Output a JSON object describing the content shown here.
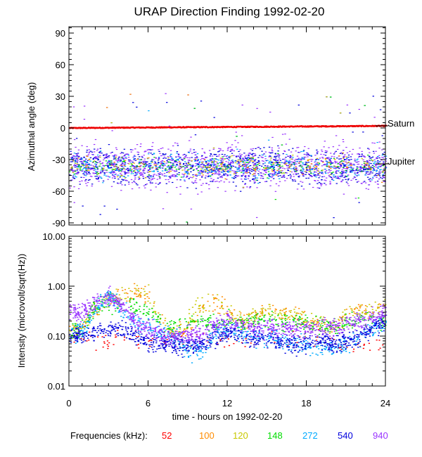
{
  "title": "URAP Direction Finding  1992-02-20",
  "chart_data": [
    {
      "type": "scatter",
      "ylabel": "Azimuthal angle (deg)",
      "xlim": [
        0,
        24
      ],
      "ylim": [
        -92,
        96
      ],
      "yticks": [
        "-90",
        "-60",
        "-30",
        "0",
        "30",
        "60",
        "90"
      ],
      "ytick_values": [
        -90,
        -60,
        -30,
        0,
        30,
        60,
        90
      ],
      "annotations": [
        {
          "text": "Saturn",
          "y": 2
        },
        {
          "text": "Jupiter",
          "y": -34
        }
      ],
      "series_summary": [
        {
          "frequency": "52",
          "values": "Saturn track",
          "y_start": 0,
          "y_end": 2
        },
        {
          "frequency": "540",
          "mean": -36,
          "spread": 9
        },
        {
          "frequency": "940",
          "mean": -36,
          "spread": 11
        },
        {
          "frequency": "272",
          "mean": -35,
          "spread": 7
        },
        {
          "frequency": "148",
          "mean": -35,
          "spread": 5
        },
        {
          "frequency": "120",
          "mean": -35,
          "spread": 5
        },
        {
          "frequency": "100",
          "mean": -36,
          "spread": 6
        }
      ]
    },
    {
      "type": "scatter",
      "ylabel": "Intensity (microvolt/sqrt(Hz))",
      "yscale": "log",
      "xlabel": "time - hours on 1992-02-20",
      "xlim": [
        0,
        24
      ],
      "ylim": [
        0.01,
        10
      ],
      "yticks": [
        "0.01",
        "0.10",
        "1.00",
        "10.00"
      ],
      "ytick_values": [
        0.01,
        0.1,
        1,
        10
      ],
      "xticks": [
        "0",
        "6",
        "12",
        "18",
        "24"
      ],
      "xtick_values": [
        0,
        6,
        12,
        18,
        24
      ],
      "series": [
        {
          "name": "52",
          "color": "#ff0000",
          "x": [
            0,
            1,
            2,
            3,
            4,
            5,
            6,
            7,
            8,
            9,
            10,
            11,
            12,
            13,
            14,
            15,
            16,
            17,
            18,
            19,
            20,
            21,
            22,
            23,
            24
          ],
          "values": [
            0.1,
            0.1,
            0.07,
            0.07,
            0.09,
            0.09,
            0.08,
            0.09,
            0.09,
            0.09,
            0.09,
            0.09,
            0.09,
            0.09,
            0.09,
            0.09,
            0.09,
            0.09,
            0.09,
            0.09,
            0.08,
            0.07,
            0.06,
            0.06,
            0.07
          ]
        },
        {
          "name": "100",
          "color": "#ff8c00",
          "x": [
            0,
            1,
            2,
            3,
            4,
            5,
            6,
            7,
            8,
            9,
            10,
            11,
            12,
            13,
            14,
            15,
            16,
            17,
            18,
            19,
            20,
            21,
            22,
            23,
            24
          ],
          "values": [
            0.13,
            0.14,
            0.35,
            0.55,
            0.6,
            0.75,
            0.7,
            0.2,
            0.12,
            0.15,
            0.35,
            0.55,
            0.3,
            0.2,
            0.25,
            0.35,
            0.3,
            0.3,
            0.2,
            0.18,
            0.15,
            0.25,
            0.35,
            0.3,
            0.4
          ]
        },
        {
          "name": "120",
          "color": "#c8c800",
          "x": [
            0,
            1,
            2,
            3,
            4,
            5,
            6,
            7,
            8,
            9,
            10,
            11,
            12,
            13,
            14,
            15,
            16,
            17,
            18,
            19,
            20,
            21,
            22,
            23,
            24
          ],
          "values": [
            0.15,
            0.15,
            0.4,
            0.7,
            0.6,
            0.8,
            0.65,
            0.2,
            0.12,
            0.2,
            0.4,
            0.6,
            0.3,
            0.2,
            0.25,
            0.35,
            0.3,
            0.3,
            0.2,
            0.2,
            0.15,
            0.3,
            0.3,
            0.35,
            0.4
          ]
        },
        {
          "name": "148",
          "color": "#00dd00",
          "x": [
            0,
            1,
            2,
            3,
            4,
            5,
            6,
            7,
            8,
            9,
            10,
            11,
            12,
            13,
            14,
            15,
            16,
            17,
            18,
            19,
            20,
            21,
            22,
            23,
            24
          ],
          "values": [
            0.15,
            0.15,
            0.4,
            0.5,
            0.4,
            0.4,
            0.3,
            0.2,
            0.15,
            0.2,
            0.2,
            0.2,
            0.2,
            0.2,
            0.2,
            0.2,
            0.2,
            0.2,
            0.18,
            0.15,
            0.15,
            0.2,
            0.2,
            0.2,
            0.2
          ]
        },
        {
          "name": "272",
          "color": "#00aaff",
          "x": [
            0,
            1,
            2,
            3,
            4,
            5,
            6,
            7,
            8,
            9,
            10,
            11,
            12,
            13,
            14,
            15,
            16,
            17,
            18,
            19,
            20,
            21,
            22,
            23,
            24
          ],
          "values": [
            0.12,
            0.12,
            0.4,
            0.6,
            0.35,
            0.2,
            0.15,
            0.12,
            0.1,
            0.05,
            0.05,
            0.12,
            0.15,
            0.12,
            0.1,
            0.1,
            0.08,
            0.07,
            0.07,
            0.06,
            0.06,
            0.07,
            0.1,
            0.15,
            0.2
          ]
        },
        {
          "name": "540",
          "color": "#0000dd",
          "x": [
            0,
            1,
            2,
            3,
            4,
            5,
            6,
            7,
            8,
            9,
            10,
            11,
            12,
            13,
            14,
            15,
            16,
            17,
            18,
            19,
            20,
            21,
            22,
            23,
            24
          ],
          "values": [
            0.1,
            0.1,
            0.12,
            0.15,
            0.15,
            0.1,
            0.07,
            0.07,
            0.07,
            0.07,
            0.07,
            0.1,
            0.12,
            0.1,
            0.09,
            0.09,
            0.08,
            0.07,
            0.07,
            0.08,
            0.07,
            0.08,
            0.1,
            0.15,
            0.2
          ]
        },
        {
          "name": "940",
          "color": "#9933ff",
          "x": [
            0,
            1,
            2,
            3,
            4,
            5,
            6,
            7,
            8,
            9,
            10,
            11,
            12,
            13,
            14,
            15,
            16,
            17,
            18,
            19,
            20,
            21,
            22,
            23,
            24
          ],
          "values": [
            0.3,
            0.3,
            0.5,
            0.6,
            0.4,
            0.2,
            0.15,
            0.11,
            0.1,
            0.11,
            0.12,
            0.15,
            0.2,
            0.16,
            0.15,
            0.15,
            0.14,
            0.14,
            0.14,
            0.15,
            0.14,
            0.18,
            0.2,
            0.25,
            0.3
          ]
        }
      ]
    }
  ],
  "legend": {
    "label": "Frequencies (kHz):",
    "items": [
      {
        "text": "52",
        "color": "#ff0000"
      },
      {
        "text": "100",
        "color": "#ff8c00"
      },
      {
        "text": "120",
        "color": "#c8c800"
      },
      {
        "text": "148",
        "color": "#00dd00"
      },
      {
        "text": "272",
        "color": "#00aaff"
      },
      {
        "text": "540",
        "color": "#0000dd"
      },
      {
        "text": "940",
        "color": "#9933ff"
      }
    ]
  }
}
